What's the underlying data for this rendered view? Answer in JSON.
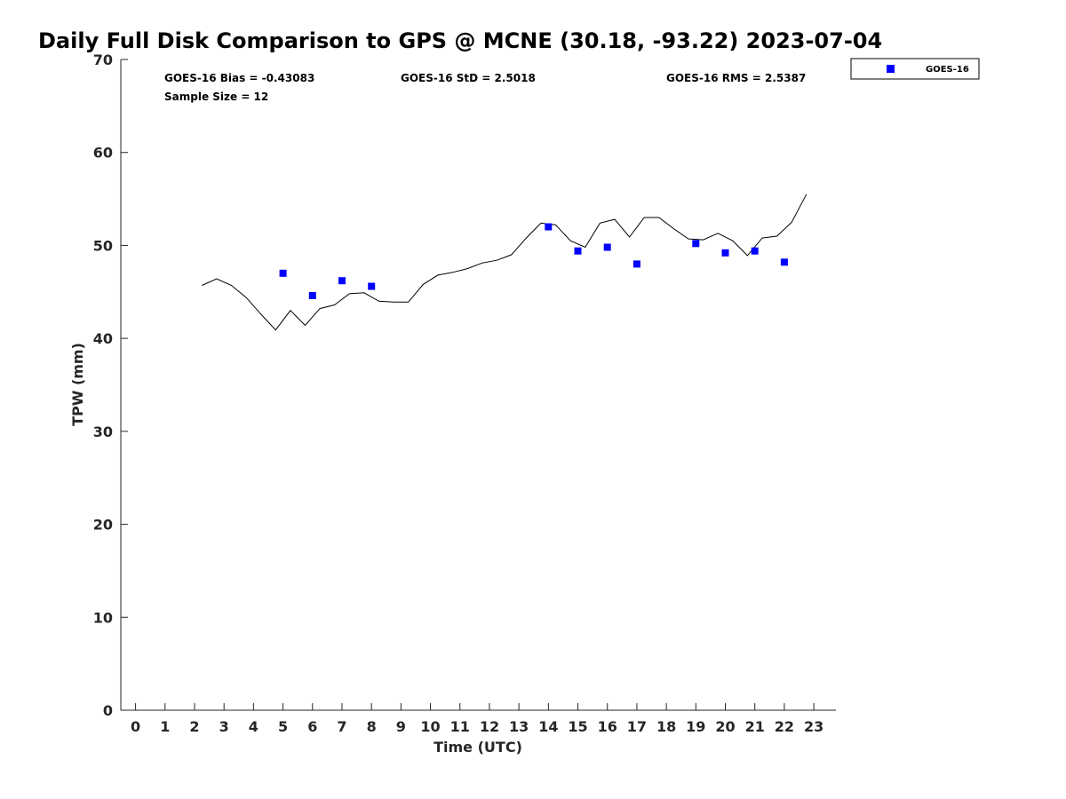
{
  "chart_data": {
    "type": "scatter",
    "title": "Daily Full Disk Comparison to GPS @ MCNE (30.18, -93.22) 2023-07-04",
    "xlabel": "Time (UTC)",
    "ylabel": "TPW (mm)",
    "xlim": [
      -0.5,
      23.75
    ],
    "ylim": [
      0,
      70
    ],
    "xticks": [
      0,
      1,
      2,
      3,
      4,
      5,
      6,
      7,
      8,
      9,
      10,
      11,
      12,
      13,
      14,
      15,
      16,
      17,
      18,
      19,
      20,
      21,
      22,
      23
    ],
    "xtick_labels": [
      "0",
      "1",
      "2",
      "3",
      "4",
      "5",
      "6",
      "7",
      "8",
      "9",
      "10",
      "11",
      "12",
      "13",
      "14",
      "15",
      "16",
      "17",
      "18",
      "19",
      "20",
      "21",
      "22",
      "23"
    ],
    "yticks": [
      0,
      10,
      20,
      30,
      40,
      50,
      60,
      70
    ],
    "ytick_labels": [
      "0",
      "10",
      "20",
      "30",
      "40",
      "50",
      "60",
      "70"
    ],
    "grid": false,
    "legend_position": "outside-top-right",
    "stats": {
      "bias": "GOES-16 Bias = -0.43083",
      "std": "GOES-16 StD = 2.5018",
      "rms": "GOES-16 RMS = 2.5387",
      "sample_size": "Sample Size = 12"
    },
    "series": [
      {
        "name": "GOES-16",
        "type": "scatter",
        "marker": "square",
        "color": "#0000ff",
        "x": [
          5,
          6,
          7,
          8,
          14,
          15,
          16,
          17,
          19,
          20,
          21,
          22
        ],
        "y": [
          47.0,
          44.6,
          46.2,
          45.6,
          52.0,
          49.4,
          49.8,
          48.0,
          50.2,
          49.2,
          49.4,
          48.2
        ]
      },
      {
        "type": "line",
        "color": "#000000",
        "x": [
          2.25,
          2.75,
          3.25,
          3.75,
          4.25,
          4.75,
          5.25,
          5.75,
          6.25,
          6.75,
          7.25,
          7.75,
          8.25,
          8.75,
          9.25,
          9.75,
          10.25,
          10.75,
          11.25,
          11.75,
          12.25,
          12.75,
          13.25,
          13.75,
          14.25,
          14.75,
          15.25,
          15.75,
          16.25,
          16.75,
          17.25,
          17.75,
          18.25,
          18.75,
          19.25,
          19.75,
          20.25,
          20.75,
          21.25,
          21.75,
          22.25,
          22.75
        ],
        "y": [
          45.7,
          46.4,
          45.7,
          44.4,
          42.6,
          40.9,
          43.0,
          41.4,
          43.2,
          43.6,
          44.8,
          44.9,
          44.0,
          43.9,
          43.9,
          45.8,
          46.8,
          47.1,
          47.5,
          48.1,
          48.4,
          49.0,
          50.8,
          52.4,
          52.2,
          50.5,
          49.8,
          52.4,
          52.8,
          50.9,
          53.0,
          53.0,
          51.8,
          50.7,
          50.6,
          51.3,
          50.5,
          48.9,
          50.8,
          51.0,
          52.5,
          55.5
        ]
      }
    ]
  }
}
